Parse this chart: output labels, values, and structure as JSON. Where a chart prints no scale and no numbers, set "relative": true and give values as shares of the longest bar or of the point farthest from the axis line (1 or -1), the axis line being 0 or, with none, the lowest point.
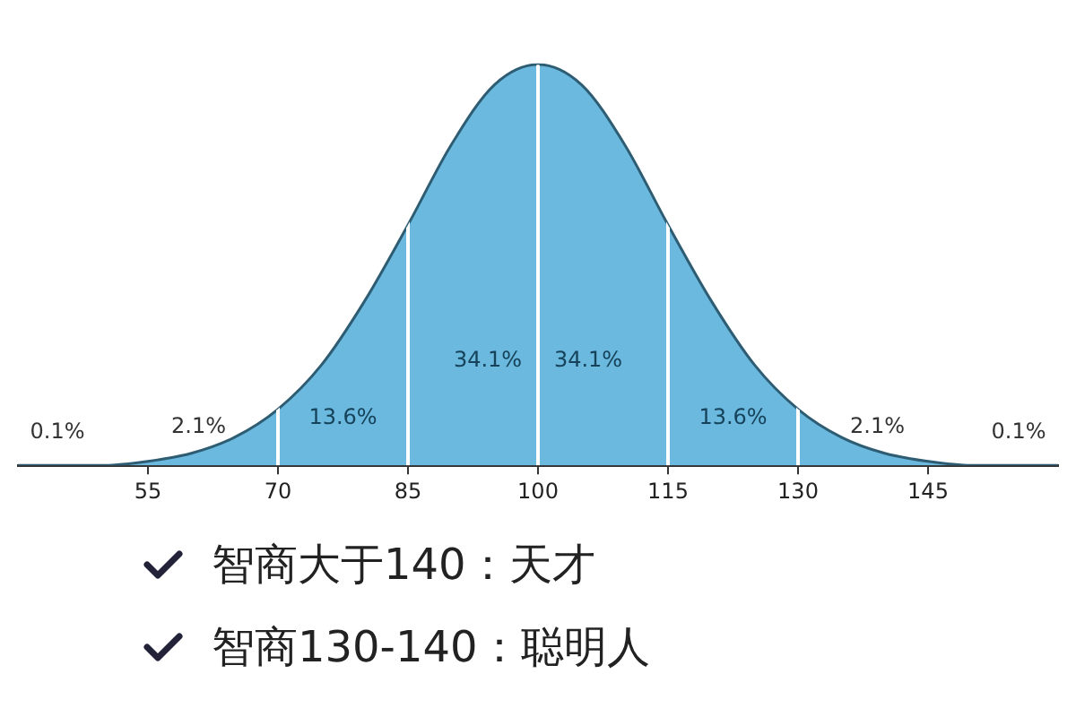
{
  "chart_data": {
    "type": "area",
    "relative": true,
    "x": [
      40,
      45,
      50,
      55,
      60,
      65,
      70,
      75,
      80,
      85,
      90,
      95,
      100,
      105,
      110,
      115,
      120,
      125,
      130,
      135,
      140,
      145,
      150,
      155,
      160
    ],
    "series": [
      {
        "color": "#6bb9de",
        "values": [
          0,
          0,
          0,
          0.01,
          0.03,
          0.07,
          0.14,
          0.25,
          0.41,
          0.6,
          0.8,
          0.95,
          1,
          0.95,
          0.8,
          0.6,
          0.41,
          0.25,
          0.14,
          0.07,
          0.03,
          0.01,
          0,
          0,
          0
        ]
      }
    ],
    "xlim": [
      40,
      160
    ],
    "xticks": [
      55,
      70,
      85,
      100,
      115,
      130,
      145
    ],
    "grid": false,
    "legend": false,
    "ref_lines": [
      {
        "axis": "x",
        "value": 70,
        "color": "#ffffff"
      },
      {
        "axis": "x",
        "value": 85,
        "color": "#ffffff"
      },
      {
        "axis": "x",
        "value": 100,
        "color": "#ffffff"
      },
      {
        "axis": "x",
        "value": 115,
        "color": "#ffffff"
      },
      {
        "axis": "x",
        "value": 130,
        "color": "#ffffff"
      }
    ],
    "annotations": [
      "0.1%",
      "2.1%",
      "13.6%",
      "34.1%",
      "34.1%",
      "13.6%",
      "2.1%",
      "0.1%",
      "智商大于140：天才",
      "智商130-140：聪明人"
    ]
  }
}
